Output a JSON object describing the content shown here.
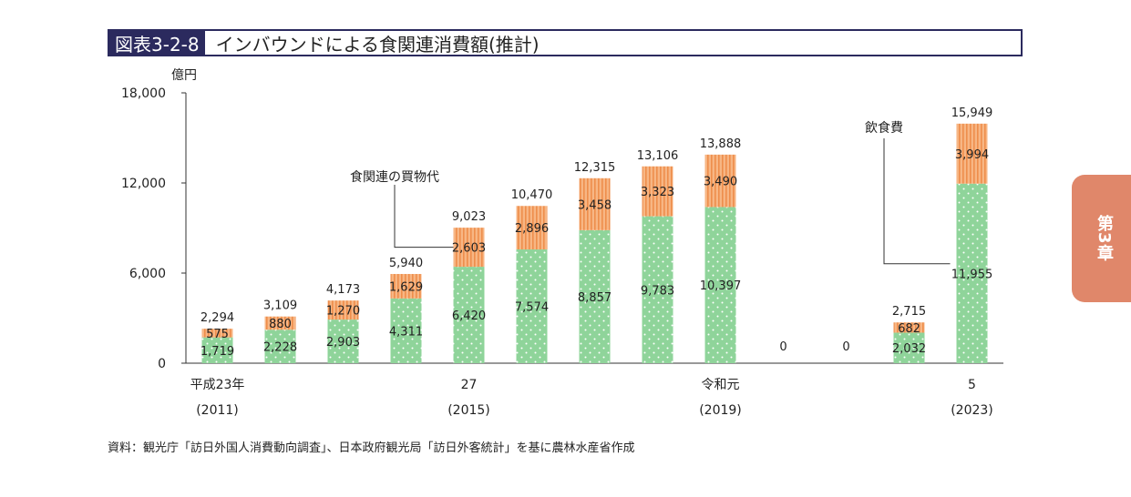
{
  "header": {
    "figure_id": "図表3-2-8",
    "title": "インバウンドによる食関連消費額(推計)"
  },
  "side_tab": {
    "label": "第3章"
  },
  "source": "資料：観光庁「訪日外国人消費動向調査」、日本政府観光局「訪日外客統計」を基に農林水産省作成",
  "colors": {
    "green": "#8fd49a",
    "orange": "#f5a96e",
    "dot": "#ffffff",
    "stripe": "#f0904e"
  },
  "chart_data": {
    "type": "bar",
    "stacked": true,
    "ylabel": "億円",
    "ylim": [
      0,
      18000
    ],
    "yticks": [
      "0",
      "6,000",
      "12,000",
      "18,000"
    ],
    "ytick_values": [
      0,
      6000,
      12000,
      18000
    ],
    "categories": [
      "2011",
      "2012",
      "2013",
      "2014",
      "2015",
      "2016",
      "2017",
      "2018",
      "2019",
      "2020",
      "2021",
      "2022",
      "2023"
    ],
    "xtick_labels": [
      {
        "index": 0,
        "line1": "平成23年",
        "line2": "(2011)"
      },
      {
        "index": 4,
        "line1": "27",
        "line2": "(2015)"
      },
      {
        "index": 8,
        "line1": "令和元",
        "line2": "(2019)"
      },
      {
        "index": 12,
        "line1": "5",
        "line2": "(2023)"
      }
    ],
    "series": [
      {
        "values": [
          1719,
          2228,
          2903,
          4311,
          6420,
          7574,
          8857,
          9783,
          10397,
          0,
          0,
          2032,
          11955
        ],
        "labels": [
          "1,719",
          "2,228",
          "2,903",
          "4,311",
          "6,420",
          "7,574",
          "8,857",
          "9,783",
          "10,397",
          "",
          "",
          "2,032",
          "11,955"
        ]
      },
      {
        "values": [
          575,
          880,
          1270,
          1629,
          2603,
          2896,
          3458,
          3323,
          3490,
          0,
          0,
          682,
          3994
        ],
        "labels": [
          "575",
          "880",
          "1,270",
          "1,629",
          "2,603",
          "2,896",
          "3,458",
          "3,323",
          "3,490",
          "",
          "",
          "682",
          "3,994"
        ]
      }
    ],
    "totals": [
      2294,
      3109,
      4173,
      5940,
      9023,
      10470,
      12315,
      13106,
      13888,
      0,
      0,
      2715,
      15949
    ],
    "total_labels": [
      "2,294",
      "3,109",
      "4,173",
      "5,940",
      "9,023",
      "10,470",
      "12,315",
      "13,106",
      "13,888",
      "0",
      "0",
      "2,715",
      "15,949"
    ],
    "annotations": [
      {
        "text": "食関連の買物代",
        "target_index": 4,
        "target_series": 1
      },
      {
        "text": "飲食費",
        "target_index": 12,
        "target_series": 0
      }
    ]
  }
}
